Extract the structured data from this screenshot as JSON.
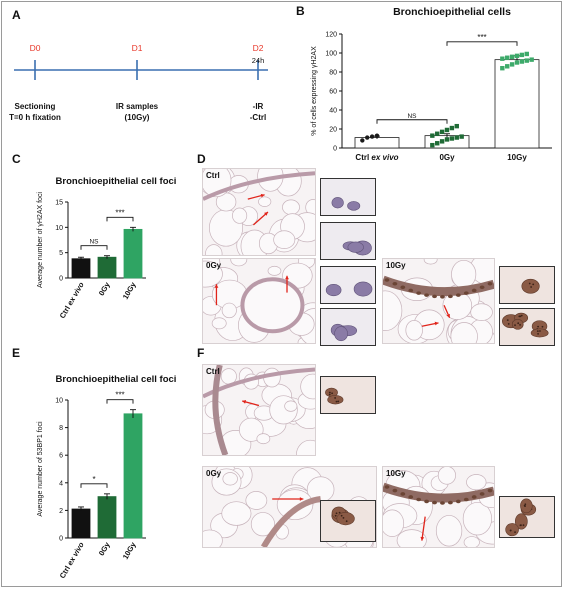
{
  "panels": {
    "A": {
      "letter": "A",
      "timeline": [
        {
          "day": "D0",
          "caption": [
            "Sectioning",
            "T=0 h fixation"
          ]
        },
        {
          "day": "D1",
          "caption": [
            "IR samples",
            "(10Gy)"
          ]
        },
        {
          "day": "D2",
          "sublabel": "24h",
          "caption": [
            "-IR",
            "-Ctrl"
          ]
        }
      ],
      "colors": {
        "day": "#e8392b",
        "line": "#3a6fb0"
      }
    },
    "B": {
      "letter": "B"
    },
    "C": {
      "letter": "C"
    },
    "D": {
      "letter": "D",
      "labels": {
        "ctrl": "Ctrl",
        "g0": "0Gy",
        "g10": "10Gy"
      }
    },
    "E": {
      "letter": "E"
    },
    "F": {
      "letter": "F",
      "labels": {
        "ctrl": "Ctrl",
        "g0": "0Gy",
        "g10": "10Gy"
      }
    }
  },
  "chart_data": [
    {
      "id": "B",
      "type": "bar",
      "title": "Bronchioepithelial cells",
      "ylabel": "% of cells expressing γH2AX",
      "categories": [
        "Ctrl ex vivo",
        "0Gy",
        "10Gy"
      ],
      "values": [
        11,
        13,
        93
      ],
      "errors": [
        1.5,
        2,
        4
      ],
      "ylim": [
        0,
        120
      ],
      "yticks": [
        0,
        20,
        40,
        60,
        80,
        100,
        120
      ],
      "points": [
        [
          8,
          11,
          12,
          13
        ],
        [
          3,
          5,
          7,
          9,
          10,
          11,
          12,
          13,
          15,
          17,
          19,
          21,
          23
        ],
        [
          84,
          86,
          88,
          90,
          91,
          92,
          93,
          94,
          95,
          96,
          97,
          98,
          99
        ]
      ],
      "bar_fill": [
        "#ffffff",
        "#ffffff",
        "#ffffff"
      ],
      "point_colors": [
        "#1a1a1a",
        "#1f6b36",
        "#3daa6a"
      ],
      "significance": [
        {
          "from": 0,
          "to": 1,
          "label": "NS"
        },
        {
          "from": 1,
          "to": 2,
          "label": "***"
        }
      ]
    },
    {
      "id": "C",
      "type": "bar",
      "title": "Bronchioepithelial cell foci",
      "ylabel": "Average number of γH2AX foci",
      "categories": [
        "Ctrl ex vivo",
        "0Gy",
        "10Gy"
      ],
      "values": [
        3.8,
        4.1,
        9.6
      ],
      "errors": [
        0.3,
        0.3,
        0.4
      ],
      "ylim": [
        0,
        15
      ],
      "yticks": [
        0,
        5,
        10,
        15
      ],
      "bar_fill": [
        "#111111",
        "#1f6b36",
        "#2fa463"
      ],
      "significance": [
        {
          "from": 0,
          "to": 1,
          "label": "NS"
        },
        {
          "from": 1,
          "to": 2,
          "label": "***"
        }
      ]
    },
    {
      "id": "E",
      "type": "bar",
      "title": "Bronchioepithelial cell foci",
      "ylabel": "Average number of 53BP1 foci",
      "categories": [
        "Ctrl ex vivo",
        "0Gy",
        "10Gy"
      ],
      "values": [
        2.1,
        3.0,
        9.0
      ],
      "errors": [
        0.15,
        0.2,
        0.3
      ],
      "ylim": [
        0,
        10
      ],
      "yticks": [
        0,
        2,
        4,
        6,
        8,
        10
      ],
      "bar_fill": [
        "#111111",
        "#1f6b36",
        "#2fa463"
      ],
      "significance": [
        {
          "from": 0,
          "to": 1,
          "label": "*"
        },
        {
          "from": 1,
          "to": 2,
          "label": "***"
        }
      ]
    }
  ]
}
